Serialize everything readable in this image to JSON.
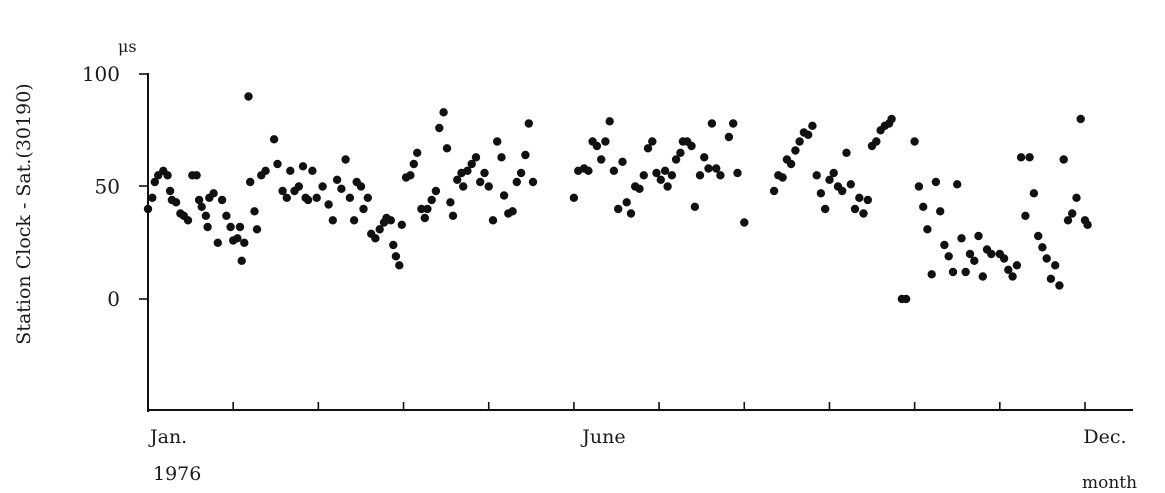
{
  "chart_data": {
    "type": "scatter",
    "title": "",
    "xlabel": "month",
    "ylabel": "Station Clock - Sat.(30190)",
    "yunit": "μs",
    "year_label": "1976",
    "xlim": [
      0,
      11
    ],
    "ylim": [
      -50,
      100
    ],
    "x_tick_labels": [
      {
        "x": 0,
        "label": "Jan."
      },
      {
        "x": 5,
        "label": "June"
      },
      {
        "x": 11,
        "label": "Dec."
      }
    ],
    "x_minor_ticks": [
      0,
      1,
      2,
      3,
      4,
      5,
      6,
      7,
      8,
      9,
      10,
      11
    ],
    "y_ticks": [
      0,
      50,
      100
    ],
    "grid": false,
    "points": [
      [
        0.0,
        40
      ],
      [
        0.05,
        45
      ],
      [
        0.08,
        52
      ],
      [
        0.12,
        55
      ],
      [
        0.18,
        57
      ],
      [
        0.23,
        55
      ],
      [
        0.26,
        48
      ],
      [
        0.28,
        44
      ],
      [
        0.33,
        43
      ],
      [
        0.38,
        38
      ],
      [
        0.42,
        37
      ],
      [
        0.47,
        35
      ],
      [
        0.52,
        55
      ],
      [
        0.57,
        55
      ],
      [
        0.6,
        44
      ],
      [
        0.63,
        41
      ],
      [
        0.68,
        37
      ],
      [
        0.7,
        32
      ],
      [
        0.72,
        45
      ],
      [
        0.77,
        47
      ],
      [
        0.82,
        25
      ],
      [
        0.87,
        44
      ],
      [
        0.92,
        37
      ],
      [
        0.97,
        32
      ],
      [
        1.0,
        26
      ],
      [
        1.05,
        27
      ],
      [
        1.08,
        32
      ],
      [
        1.1,
        17
      ],
      [
        1.13,
        25
      ],
      [
        1.18,
        90
      ],
      [
        1.2,
        52
      ],
      [
        1.25,
        39
      ],
      [
        1.28,
        31
      ],
      [
        1.33,
        55
      ],
      [
        1.38,
        57
      ],
      [
        1.48,
        71
      ],
      [
        1.52,
        60
      ],
      [
        1.58,
        48
      ],
      [
        1.63,
        45
      ],
      [
        1.67,
        57
      ],
      [
        1.72,
        48
      ],
      [
        1.77,
        50
      ],
      [
        1.82,
        59
      ],
      [
        1.85,
        45
      ],
      [
        1.88,
        44
      ],
      [
        1.93,
        57
      ],
      [
        1.98,
        45
      ],
      [
        2.05,
        50
      ],
      [
        2.12,
        42
      ],
      [
        2.17,
        35
      ],
      [
        2.22,
        53
      ],
      [
        2.27,
        49
      ],
      [
        2.32,
        62
      ],
      [
        2.37,
        45
      ],
      [
        2.42,
        35
      ],
      [
        2.45,
        52
      ],
      [
        2.5,
        50
      ],
      [
        2.53,
        40
      ],
      [
        2.58,
        45
      ],
      [
        2.62,
        29
      ],
      [
        2.67,
        27
      ],
      [
        2.72,
        31
      ],
      [
        2.77,
        34
      ],
      [
        2.8,
        36
      ],
      [
        2.85,
        35
      ],
      [
        2.88,
        24
      ],
      [
        2.91,
        19
      ],
      [
        2.95,
        15
      ],
      [
        2.98,
        33
      ],
      [
        3.03,
        54
      ],
      [
        3.08,
        55
      ],
      [
        3.12,
        60
      ],
      [
        3.16,
        65
      ],
      [
        3.21,
        40
      ],
      [
        3.25,
        36
      ],
      [
        3.28,
        40
      ],
      [
        3.33,
        44
      ],
      [
        3.38,
        48
      ],
      [
        3.42,
        76
      ],
      [
        3.47,
        83
      ],
      [
        3.51,
        67
      ],
      [
        3.55,
        43
      ],
      [
        3.58,
        37
      ],
      [
        3.63,
        53
      ],
      [
        3.68,
        56
      ],
      [
        3.7,
        50
      ],
      [
        3.75,
        57
      ],
      [
        3.8,
        60
      ],
      [
        3.85,
        63
      ],
      [
        3.9,
        52
      ],
      [
        3.95,
        56
      ],
      [
        4.0,
        50
      ],
      [
        4.05,
        35
      ],
      [
        4.1,
        70
      ],
      [
        4.15,
        63
      ],
      [
        4.18,
        46
      ],
      [
        4.23,
        38
      ],
      [
        4.28,
        39
      ],
      [
        4.33,
        52
      ],
      [
        4.38,
        56
      ],
      [
        4.43,
        64
      ],
      [
        4.47,
        78
      ],
      [
        4.52,
        52
      ],
      [
        5.0,
        45
      ],
      [
        5.05,
        57
      ],
      [
        5.12,
        58
      ],
      [
        5.17,
        57
      ],
      [
        5.22,
        70
      ],
      [
        5.27,
        68
      ],
      [
        5.32,
        62
      ],
      [
        5.37,
        70
      ],
      [
        5.42,
        79
      ],
      [
        5.47,
        57
      ],
      [
        5.52,
        40
      ],
      [
        5.57,
        61
      ],
      [
        5.62,
        43
      ],
      [
        5.67,
        38
      ],
      [
        5.72,
        50
      ],
      [
        5.77,
        49
      ],
      [
        5.82,
        55
      ],
      [
        5.87,
        67
      ],
      [
        5.92,
        70
      ],
      [
        5.97,
        56
      ],
      [
        6.02,
        53
      ],
      [
        6.07,
        57
      ],
      [
        6.1,
        50
      ],
      [
        6.15,
        55
      ],
      [
        6.2,
        62
      ],
      [
        6.25,
        65
      ],
      [
        6.28,
        70
      ],
      [
        6.33,
        70
      ],
      [
        6.38,
        68
      ],
      [
        6.42,
        41
      ],
      [
        6.48,
        55
      ],
      [
        6.53,
        63
      ],
      [
        6.58,
        58
      ],
      [
        6.62,
        78
      ],
      [
        6.67,
        58
      ],
      [
        6.72,
        55
      ],
      [
        6.82,
        72
      ],
      [
        6.87,
        78
      ],
      [
        6.92,
        56
      ],
      [
        7.0,
        34
      ],
      [
        7.35,
        48
      ],
      [
        7.4,
        55
      ],
      [
        7.45,
        54
      ],
      [
        7.5,
        62
      ],
      [
        7.55,
        60
      ],
      [
        7.6,
        66
      ],
      [
        7.65,
        70
      ],
      [
        7.7,
        74
      ],
      [
        7.75,
        73
      ],
      [
        7.8,
        77
      ],
      [
        7.85,
        55
      ],
      [
        7.9,
        47
      ],
      [
        7.95,
        40
      ],
      [
        8.0,
        53
      ],
      [
        8.05,
        56
      ],
      [
        8.1,
        50
      ],
      [
        8.15,
        48
      ],
      [
        8.2,
        65
      ],
      [
        8.25,
        51
      ],
      [
        8.3,
        40
      ],
      [
        8.35,
        45
      ],
      [
        8.4,
        38
      ],
      [
        8.45,
        44
      ],
      [
        8.5,
        68
      ],
      [
        8.55,
        70
      ],
      [
        8.6,
        75
      ],
      [
        8.65,
        77
      ],
      [
        8.7,
        78
      ],
      [
        8.73,
        80
      ],
      [
        8.85,
        0
      ],
      [
        8.9,
        0
      ],
      [
        9.0,
        70
      ],
      [
        9.05,
        50
      ],
      [
        9.1,
        41
      ],
      [
        9.15,
        31
      ],
      [
        9.2,
        11
      ],
      [
        9.25,
        52
      ],
      [
        9.3,
        39
      ],
      [
        9.35,
        24
      ],
      [
        9.4,
        19
      ],
      [
        9.45,
        12
      ],
      [
        9.5,
        51
      ],
      [
        9.55,
        27
      ],
      [
        9.6,
        12
      ],
      [
        9.65,
        20
      ],
      [
        9.7,
        17
      ],
      [
        9.75,
        28
      ],
      [
        9.8,
        10
      ],
      [
        9.85,
        22
      ],
      [
        9.9,
        20
      ],
      [
        10.0,
        20
      ],
      [
        10.05,
        18
      ],
      [
        10.1,
        13
      ],
      [
        10.15,
        10
      ],
      [
        10.2,
        15
      ],
      [
        10.25,
        63
      ],
      [
        10.3,
        37
      ],
      [
        10.35,
        63
      ],
      [
        10.4,
        47
      ],
      [
        10.45,
        28
      ],
      [
        10.5,
        23
      ],
      [
        10.55,
        18
      ],
      [
        10.6,
        9
      ],
      [
        10.65,
        15
      ],
      [
        10.7,
        6
      ],
      [
        10.75,
        62
      ],
      [
        10.8,
        35
      ],
      [
        10.85,
        38
      ],
      [
        10.9,
        45
      ],
      [
        10.95,
        80
      ],
      [
        11.0,
        35
      ],
      [
        11.03,
        33
      ]
    ]
  }
}
